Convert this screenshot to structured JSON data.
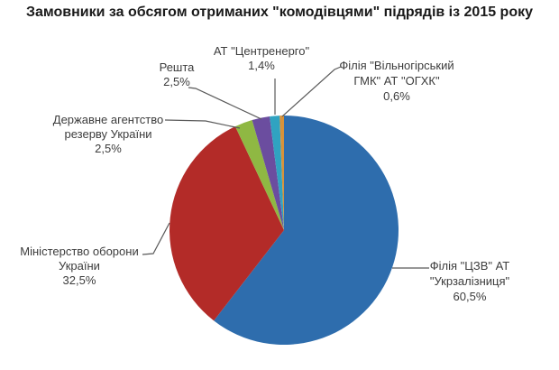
{
  "title": "Замовники за обсягом отриманих \"комодівцями\" підрядів із 2015 року",
  "chart_data": {
    "type": "pie",
    "title": "Замовники за обсягом отриманих \"комодівцями\" підрядів із 2015 року",
    "unit": "%",
    "direction": "clockwise",
    "start_angle_deg": 0,
    "legend": "none",
    "labels_as_callouts": true,
    "slices": [
      {
        "name": "Філія \"ЦЗВ\" АТ \"Укрзалізниця\"",
        "value": 60.5,
        "display": "60,5%",
        "color": "#2E6DAD"
      },
      {
        "name": "Міністерство оборони України",
        "value": 32.5,
        "display": "32,5%",
        "color": "#B32B28"
      },
      {
        "name": "Державне агентство резерву України",
        "value": 2.5,
        "display": "2,5%",
        "color": "#8FB843"
      },
      {
        "name": "Решта",
        "value": 2.5,
        "display": "2,5%",
        "color": "#6B4D9F"
      },
      {
        "name": "АТ \"Центренерго\"",
        "value": 1.4,
        "display": "1,4%",
        "color": "#30A3C1"
      },
      {
        "name": "Філія \"Вільногірський ГМК\" АТ \"ОГХК\"",
        "value": 0.6,
        "display": "0,6%",
        "color": "#D89239"
      }
    ]
  },
  "callouts": {
    "tsentrenergo": "АТ \"Центренерго\"\n1,4%",
    "reshta": "Решта\n2,5%",
    "oghk": "Філія \"Вільногірський\nГМК\" АТ \"ОГХК\"\n0,6%",
    "derzhagentstvo": "Державне агентство\nрезерву України\n2,5%",
    "minoborony": "Міністерство оборони\nУкраїни\n32,5%",
    "ukrzaliznytsia": "Філія \"ЦЗВ\" АТ\n\"Укрзалізниця\"\n60,5%"
  },
  "colors": {
    "leader_line": "#595959",
    "label_text": "#3c3c3c",
    "title_text": "#1a1a1a",
    "background": "#ffffff"
  }
}
